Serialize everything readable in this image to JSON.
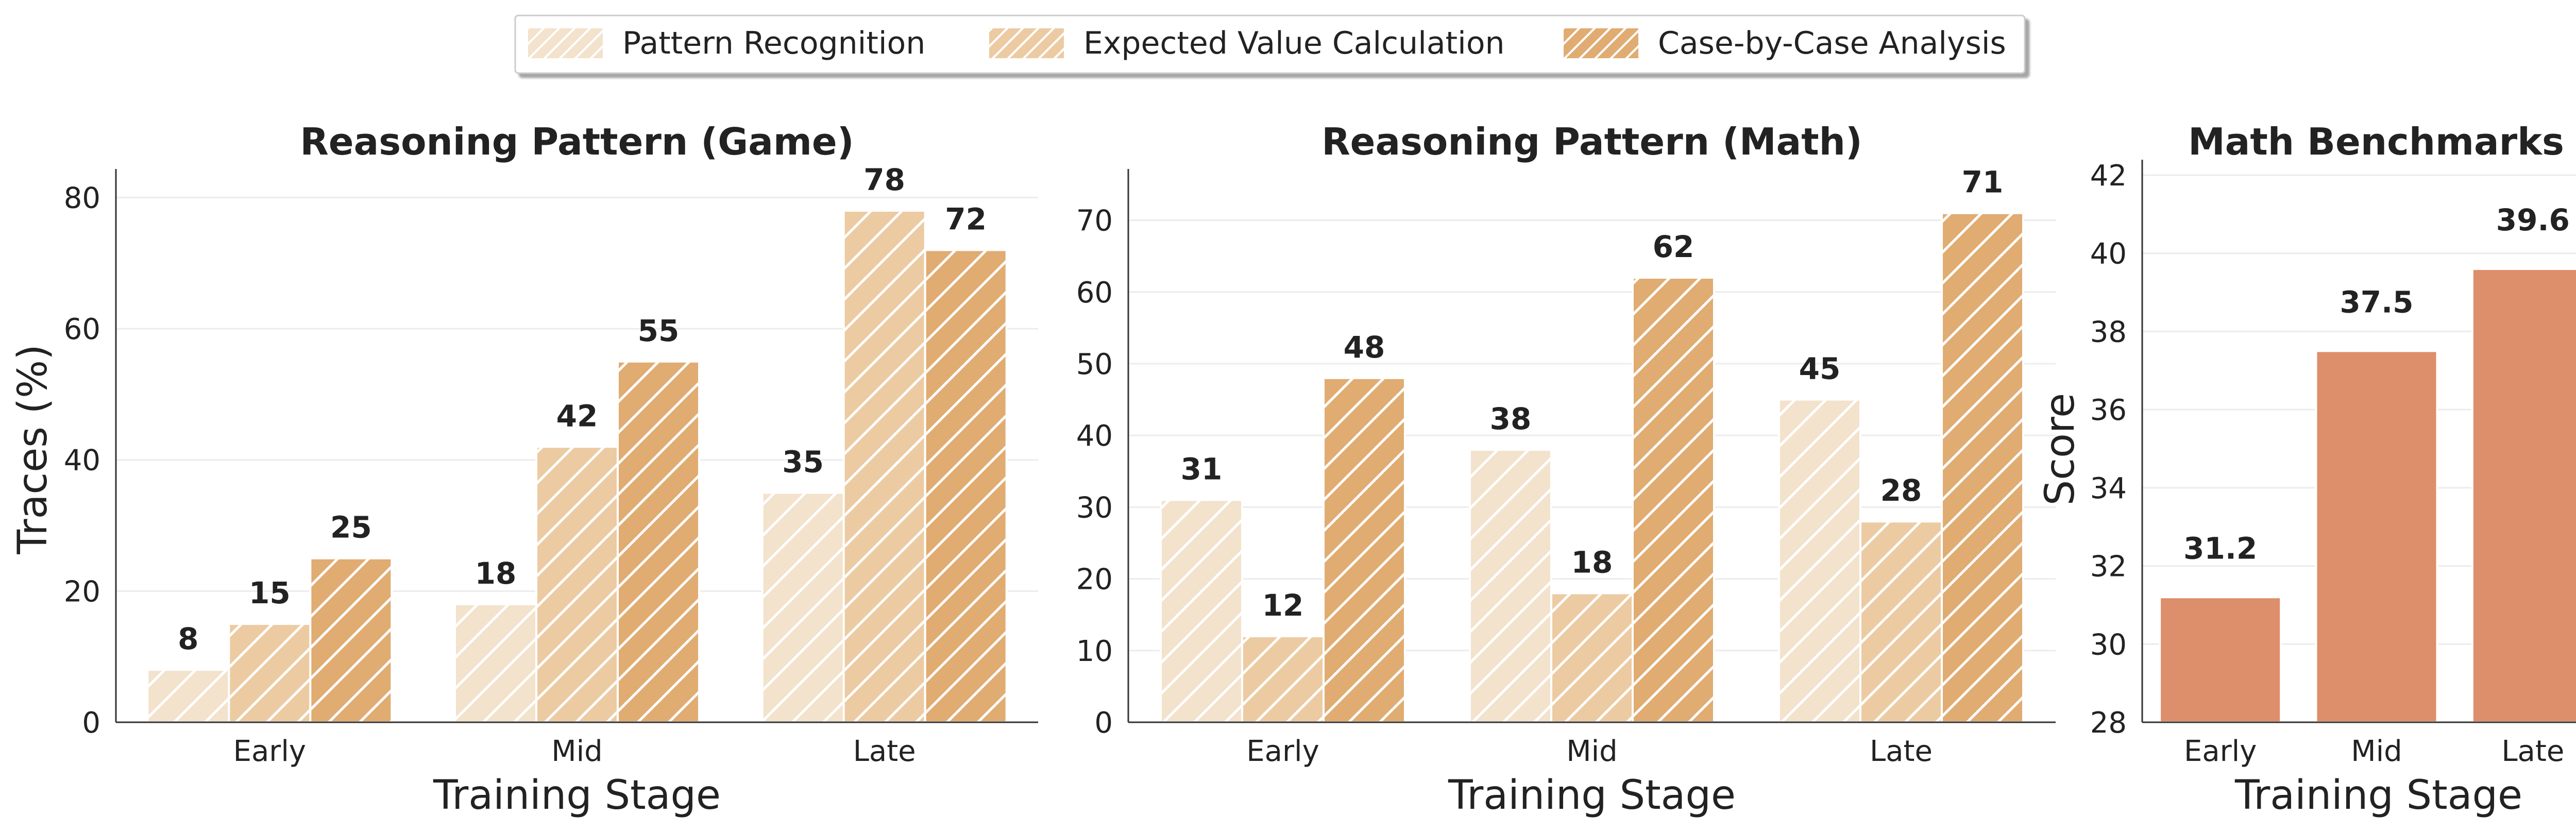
{
  "legend": {
    "items": [
      {
        "label": "Pattern Recognition",
        "color": "#f3e2cc",
        "hatch": true
      },
      {
        "label": "Expected Value Calculation",
        "color": "#eccba3",
        "hatch": true
      },
      {
        "label": "Case-by-Case Analysis",
        "color": "#e0ac72",
        "hatch": true
      }
    ]
  },
  "chart_data": [
    {
      "type": "bar",
      "title": "Reasoning Pattern (Game)",
      "xlabel": "Training Stage",
      "ylabel": "Traces (%)",
      "categories": [
        "Early",
        "Mid",
        "Late"
      ],
      "series": [
        {
          "name": "Pattern Recognition",
          "values": [
            8,
            18,
            35
          ],
          "color": "#f3e2cc"
        },
        {
          "name": "Expected Value Calculation",
          "values": [
            15,
            42,
            78
          ],
          "color": "#eccba3"
        },
        {
          "name": "Case-by-Case Analysis",
          "values": [
            25,
            55,
            72
          ],
          "color": "#e0ac72"
        }
      ],
      "ylim": [
        0,
        82
      ],
      "yticks": [
        0,
        20,
        40,
        60,
        80
      ],
      "grid": true,
      "hatch": true
    },
    {
      "type": "bar",
      "title": "Reasoning Pattern (Math)",
      "xlabel": "Training Stage",
      "ylabel": "",
      "categories": [
        "Early",
        "Mid",
        "Late"
      ],
      "series": [
        {
          "name": "Pattern Recognition",
          "values": [
            31,
            38,
            45
          ],
          "color": "#f3e2cc"
        },
        {
          "name": "Expected Value Calculation",
          "values": [
            12,
            18,
            28
          ],
          "color": "#eccba3"
        },
        {
          "name": "Case-by-Case Analysis",
          "values": [
            48,
            62,
            71
          ],
          "color": "#e0ac72"
        }
      ],
      "ylim": [
        0,
        75
      ],
      "yticks": [
        0,
        10,
        20,
        30,
        40,
        50,
        60,
        70
      ],
      "grid": true,
      "hatch": true
    },
    {
      "type": "bar",
      "title": "Math Benchmarks",
      "xlabel": "Training Stage",
      "ylabel": "Score",
      "categories": [
        "Early",
        "Mid",
        "Late"
      ],
      "series": [
        {
          "name": "",
          "values": [
            31.2,
            37.5,
            39.6
          ],
          "color": "#dd8e6a"
        }
      ],
      "value_labels": [
        "31.2",
        "37.5",
        "39.6"
      ],
      "ylim": [
        28,
        42
      ],
      "yticks": [
        28,
        30,
        32,
        34,
        36,
        38,
        40,
        42
      ],
      "grid": true,
      "hatch": false
    }
  ]
}
